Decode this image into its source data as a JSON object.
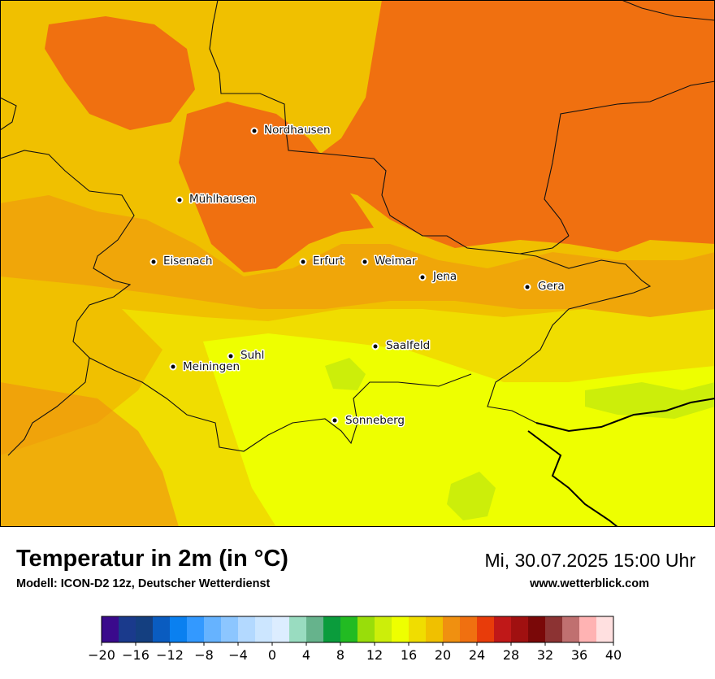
{
  "map": {
    "cities": [
      {
        "name": "Nordhausen",
        "key": "nordhausen"
      },
      {
        "name": "Mühlhausen",
        "key": "muehlhausen"
      },
      {
        "name": "Eisenach",
        "key": "eisenach"
      },
      {
        "name": "Erfurt",
        "key": "erfurt"
      },
      {
        "name": "Weimar",
        "key": "weimar"
      },
      {
        "name": "Jena",
        "key": "jena"
      },
      {
        "name": "Gera",
        "key": "gera"
      },
      {
        "name": "Saalfeld",
        "key": "saalfeld"
      },
      {
        "name": "Suhl",
        "key": "suhl"
      },
      {
        "name": "Meiningen",
        "key": "meiningen"
      },
      {
        "name": "Sonneberg",
        "key": "sonneberg"
      }
    ]
  },
  "header": {
    "title": "Temperatur in 2m (in °C)",
    "model": "Modell: ICON-D2 12z, Deutscher Wetterdienst",
    "datetime": "Mi, 30.07.2025 15:00 Uhr",
    "website": "www.wetterblick.com"
  },
  "legend": {
    "tick_labels": [
      "−20",
      "−16",
      "−12",
      "−8",
      "−4",
      "0",
      "4",
      "8",
      "12",
      "16",
      "20",
      "24",
      "28",
      "32",
      "36",
      "40"
    ],
    "colors": [
      "#3a0a8c",
      "#1a3a8c",
      "#143f80",
      "#0a5cc0",
      "#0a80f0",
      "#3399ff",
      "#66b3ff",
      "#8cc6ff",
      "#b3d9ff",
      "#cce6ff",
      "#dcedff",
      "#99dcc0",
      "#66b38c",
      "#0a9c3c",
      "#22bb22",
      "#99dd0a",
      "#ccee0a",
      "#eeff00",
      "#f0dd00",
      "#f0c000",
      "#f09010",
      "#f07010",
      "#e83c0a",
      "#c01818",
      "#a01010",
      "#7a0808",
      "#8c3333",
      "#c07070",
      "#ffb3b3",
      "#ffe0e0"
    ]
  }
}
